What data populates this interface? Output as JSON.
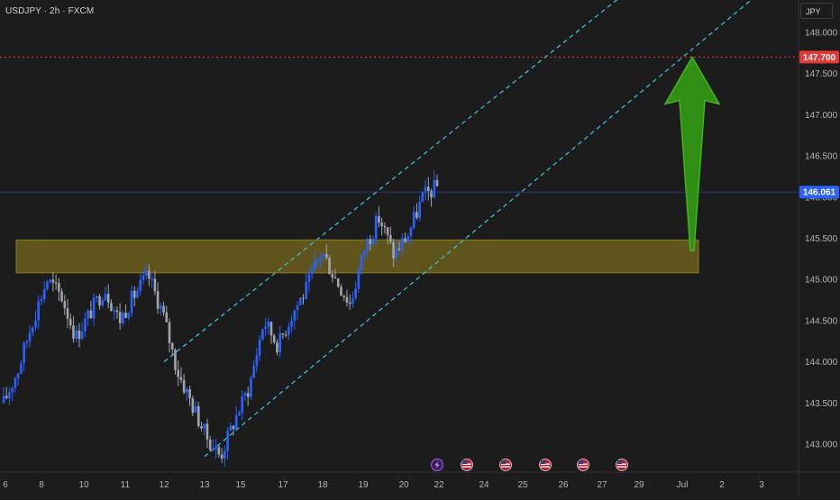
{
  "symbol": "USDJPY · 2h · FXCM",
  "currency": "JPY",
  "colors": {
    "background": "#1c1c1c",
    "up_candle": "#2962ff",
    "down_candle": "#a1a4ab",
    "channel": "#3ec6e6",
    "zone": "#6b5f1c",
    "target_line": "#e53935",
    "target_price_badge": "#e53935",
    "current_price_badge": "#2962ff",
    "arrow": "#2f8f14",
    "axis_text": "#b2b5be"
  },
  "chart_data": {
    "type": "candlestick",
    "title": "",
    "xlabel": "",
    "ylabel": "",
    "x_ticks": [
      "6",
      "8",
      "10",
      "11",
      "12",
      "13",
      "15",
      "17",
      "18",
      "19",
      "20",
      "22",
      "24",
      "25",
      "26",
      "27",
      "29",
      "Jul",
      "2",
      "3"
    ],
    "y_ticks": [
      "143.000",
      "143.500",
      "144.000",
      "144.500",
      "145.000",
      "145.500",
      "146.000",
      "146.500",
      "147.000",
      "147.500",
      "148.000"
    ],
    "ylim": [
      142.7,
      148.3
    ],
    "price_series": [
      143.5,
      143.9,
      144.5,
      145.0,
      144.8,
      144.3,
      144.6,
      144.9,
      144.5,
      144.8,
      145.05,
      144.6,
      143.9,
      143.5,
      143.1,
      142.85,
      143.3,
      143.7,
      144.5,
      144.2,
      144.6,
      144.9,
      145.35,
      145.0,
      144.7,
      145.4,
      145.75,
      145.3,
      145.55,
      146.0,
      146.13
    ],
    "current_price": "146.061",
    "target_price": "147.700",
    "annotations": {
      "support_zone": {
        "from": 145.08,
        "to": 145.48
      },
      "target_level": 147.7,
      "channel_lower": [
        {
          "x": "13",
          "y": 142.85
        },
        {
          "x": "3",
          "y": 148.5
        }
      ],
      "channel_upper": [
        {
          "x": "12",
          "y": 144.0
        },
        {
          "x": "3",
          "y": 149.8
        }
      ],
      "arrow": {
        "from": 145.35,
        "to": 147.7,
        "direction": "up"
      }
    },
    "event_markers": [
      {
        "x": "22",
        "icon": "lightning-icon"
      },
      {
        "x": "23",
        "icon": "us-flag-icon"
      },
      {
        "x": "24",
        "icon": "us-flag-icon"
      },
      {
        "x": "25",
        "icon": "us-flag-icon"
      },
      {
        "x": "26",
        "icon": "us-flag-icon"
      },
      {
        "x": "27",
        "icon": "us-flag-icon"
      }
    ],
    "grid": false
  }
}
